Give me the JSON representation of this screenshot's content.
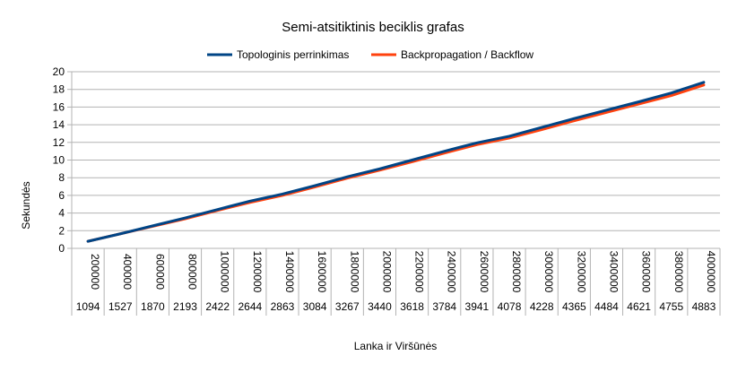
{
  "chart_data": {
    "type": "line",
    "title": "Semi-atsitiktinis beciklis grafas",
    "xlabel": "Lanka ir Viršūnės",
    "ylabel": "Sekundės",
    "ylim": [
      0,
      20
    ],
    "yticks": [
      0,
      2,
      4,
      6,
      8,
      10,
      12,
      14,
      16,
      18,
      20
    ],
    "grid": true,
    "legend": "top",
    "categories_edges": [
      "200000",
      "400000",
      "600000",
      "800000",
      "1000000",
      "1200000",
      "1400000",
      "1600000",
      "1800000",
      "2000000",
      "2200000",
      "2400000",
      "2600000",
      "2800000",
      "3000000",
      "3200000",
      "3400000",
      "3600000",
      "3800000",
      "4000000"
    ],
    "categories_vertices": [
      "1094",
      "1527",
      "1870",
      "2193",
      "2422",
      "2644",
      "2863",
      "3084",
      "3267",
      "3440",
      "3618",
      "3784",
      "3941",
      "4078",
      "4228",
      "4365",
      "4484",
      "4621",
      "4755",
      "4883"
    ],
    "series": [
      {
        "name": "Topologinis perrinkimas",
        "color": "#004586",
        "values": [
          0.8,
          1.65,
          2.55,
          3.45,
          4.4,
          5.35,
          6.15,
          7.1,
          8.1,
          9.0,
          10.0,
          11.0,
          11.95,
          12.7,
          13.7,
          14.7,
          15.65,
          16.6,
          17.6,
          18.8
        ]
      },
      {
        "name": "Backpropagation / Backflow",
        "color": "#ff420e",
        "values": [
          0.8,
          1.65,
          2.5,
          3.35,
          4.3,
          5.2,
          6.0,
          6.95,
          7.95,
          8.85,
          9.8,
          10.8,
          11.75,
          12.5,
          13.45,
          14.45,
          15.4,
          16.35,
          17.3,
          18.5
        ]
      }
    ]
  }
}
